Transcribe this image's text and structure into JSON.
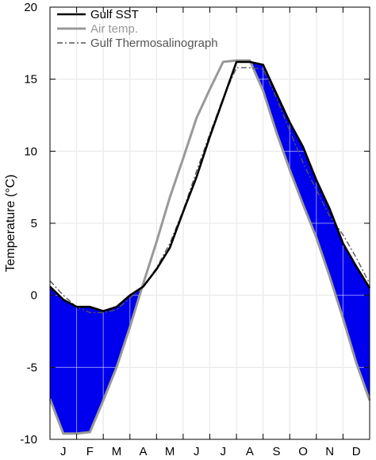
{
  "chart_data": {
    "type": "line",
    "title": "",
    "xlabel": "",
    "ylabel": "Temperature (°C)",
    "ylim": [
      -10,
      20
    ],
    "yticks": [
      -10,
      -5,
      0,
      5,
      10,
      15,
      20
    ],
    "ytick_labels": [
      "-10",
      "-5",
      "0",
      "5",
      "10",
      "15",
      "20"
    ],
    "categories": [
      "J",
      "F",
      "M",
      "A",
      "M",
      "J",
      "J",
      "A",
      "S",
      "O",
      "N",
      "D"
    ],
    "x": [
      0,
      0.5,
      1,
      1.5,
      2,
      2.5,
      3,
      3.5,
      4,
      4.5,
      5,
      5.5,
      6,
      6.5,
      7,
      7.5,
      8,
      8.5,
      9,
      9.5,
      10,
      10.5,
      11,
      11.5,
      12
    ],
    "xlim": [
      0,
      12
    ],
    "grid": true,
    "legend": "top-left",
    "fill_between": {
      "upper_series": "Gulf SST",
      "lower_series": "Air temp.",
      "color": "#0000ee",
      "where": "sst_above_air"
    },
    "series": [
      {
        "name": "Gulf SST",
        "color": "#000000",
        "style": "solid",
        "values": [
          0.6,
          -0.3,
          -0.8,
          -0.8,
          -1.1,
          -0.8,
          0.0,
          0.6,
          1.8,
          3.3,
          5.8,
          8.2,
          11.0,
          13.6,
          16.2,
          16.2,
          16.0,
          14.0,
          12.0,
          10.3,
          8.0,
          6.0,
          3.6,
          2.0,
          0.5
        ]
      },
      {
        "name": "Air temp.",
        "color": "#999999",
        "style": "solid",
        "values": [
          -7.2,
          -9.6,
          -9.6,
          -9.5,
          -7.3,
          -5.0,
          -2.2,
          0.8,
          3.7,
          6.8,
          9.5,
          12.3,
          14.3,
          16.2,
          16.3,
          16.3,
          14.2,
          11.3,
          8.7,
          6.3,
          4.0,
          1.3,
          -1.6,
          -4.7,
          -7.3
        ]
      },
      {
        "name": "Gulf Thermosalinograph",
        "color": "#555555",
        "style": "dashdot",
        "values": [
          1.0,
          0.0,
          -0.8,
          -1.2,
          -1.2,
          -1.0,
          -0.2,
          0.6,
          1.9,
          3.6,
          5.9,
          8.6,
          11.2,
          13.7,
          15.8,
          15.8,
          15.7,
          13.7,
          11.4,
          9.2,
          7.3,
          5.5,
          4.2,
          2.6,
          0.8
        ]
      }
    ]
  }
}
